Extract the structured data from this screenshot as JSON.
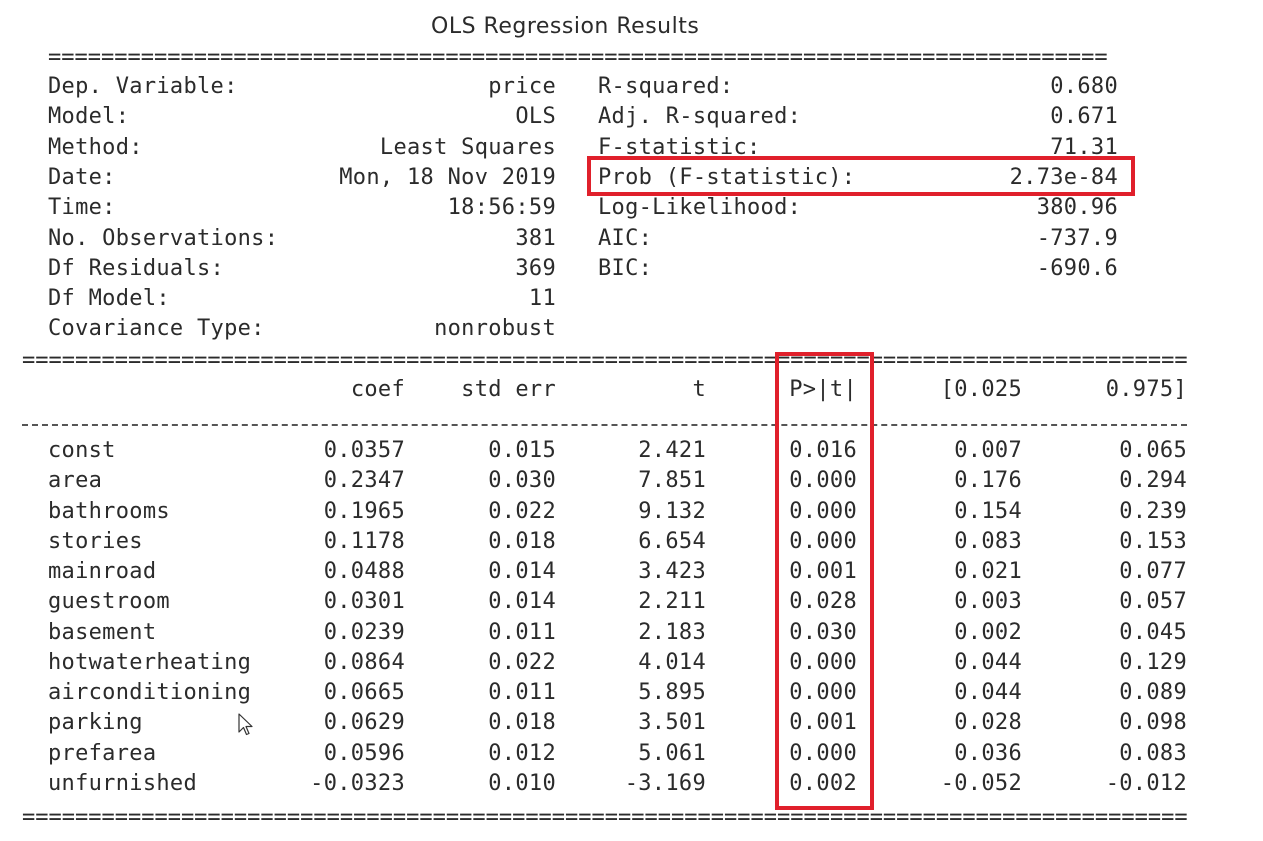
{
  "title": "OLS Regression Results",
  "rule_double": "================================================================================",
  "rule_double_wide": "===================================================================================================",
  "summary_left": [
    {
      "label": "Dep. Variable:",
      "value": "price"
    },
    {
      "label": "Model:",
      "value": "OLS"
    },
    {
      "label": "Method:",
      "value": "Least Squares"
    },
    {
      "label": "Date:",
      "value": "Mon, 18 Nov 2019"
    },
    {
      "label": "Time:",
      "value": "18:56:59"
    },
    {
      "label": "No. Observations:",
      "value": "381"
    },
    {
      "label": "Df Residuals:",
      "value": "369"
    },
    {
      "label": "Df Model:",
      "value": "11"
    },
    {
      "label": "Covariance Type:",
      "value": "nonrobust"
    }
  ],
  "summary_right": [
    {
      "label": "R-squared:",
      "value": "0.680"
    },
    {
      "label": "Adj. R-squared:",
      "value": "0.671"
    },
    {
      "label": "F-statistic:",
      "value": "71.31"
    },
    {
      "label": "Prob (F-statistic):",
      "value": "2.73e-84"
    },
    {
      "label": "Log-Likelihood:",
      "value": "380.96"
    },
    {
      "label": "AIC:",
      "value": "-737.9"
    },
    {
      "label": "BIC:",
      "value": "-690.6"
    }
  ],
  "coef_headers": [
    "coef",
    "std err",
    "t",
    "P>|t|",
    "[0.025",
    "0.975]"
  ],
  "coef_rows": [
    {
      "name": "const",
      "values": [
        "0.0357",
        "0.015",
        "2.421",
        "0.016",
        "0.007",
        "0.065"
      ]
    },
    {
      "name": "area",
      "values": [
        "0.2347",
        "0.030",
        "7.851",
        "0.000",
        "0.176",
        "0.294"
      ]
    },
    {
      "name": "bathrooms",
      "values": [
        "0.1965",
        "0.022",
        "9.132",
        "0.000",
        "0.154",
        "0.239"
      ]
    },
    {
      "name": "stories",
      "values": [
        "0.1178",
        "0.018",
        "6.654",
        "0.000",
        "0.083",
        "0.153"
      ]
    },
    {
      "name": "mainroad",
      "values": [
        "0.0488",
        "0.014",
        "3.423",
        "0.001",
        "0.021",
        "0.077"
      ]
    },
    {
      "name": "guestroom",
      "values": [
        "0.0301",
        "0.014",
        "2.211",
        "0.028",
        "0.003",
        "0.057"
      ]
    },
    {
      "name": "basement",
      "values": [
        "0.0239",
        "0.011",
        "2.183",
        "0.030",
        "0.002",
        "0.045"
      ]
    },
    {
      "name": "hotwaterheating",
      "values": [
        "0.0864",
        "0.022",
        "4.014",
        "0.000",
        "0.044",
        "0.129"
      ]
    },
    {
      "name": "airconditioning",
      "values": [
        "0.0665",
        "0.011",
        "5.895",
        "0.000",
        "0.044",
        "0.089"
      ]
    },
    {
      "name": "parking",
      "values": [
        "0.0629",
        "0.018",
        "3.501",
        "0.001",
        "0.028",
        "0.098"
      ]
    },
    {
      "name": "prefarea",
      "values": [
        "0.0596",
        "0.012",
        "5.061",
        "0.000",
        "0.036",
        "0.083"
      ]
    },
    {
      "name": "unfurnished",
      "values": [
        "-0.0323",
        "0.010",
        "-3.169",
        "0.002",
        "-0.052",
        "-0.012"
      ]
    }
  ],
  "highlight_color": "#e0202b",
  "cursor_icon": "mouse-pointer-icon"
}
